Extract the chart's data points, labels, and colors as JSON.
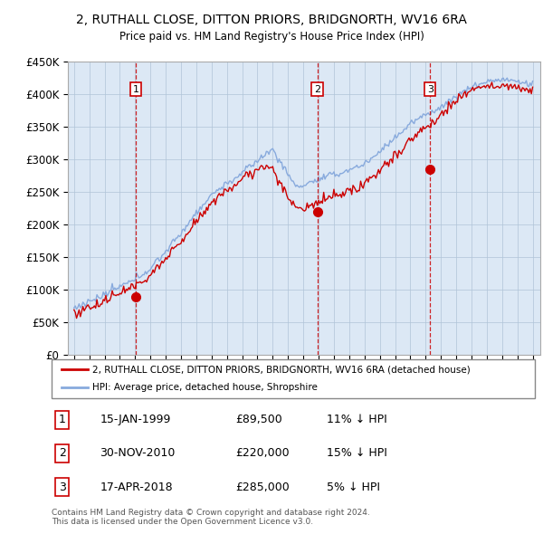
{
  "title": "2, RUTHALL CLOSE, DITTON PRIORS, BRIDGNORTH, WV16 6RA",
  "subtitle": "Price paid vs. HM Land Registry's House Price Index (HPI)",
  "ylim": [
    0,
    450000
  ],
  "yticks": [
    0,
    50000,
    100000,
    150000,
    200000,
    250000,
    300000,
    350000,
    400000,
    450000
  ],
  "ytick_labels": [
    "£0",
    "£50K",
    "£100K",
    "£150K",
    "£200K",
    "£250K",
    "£300K",
    "£350K",
    "£400K",
    "£450K"
  ],
  "price_paid_color": "#cc0000",
  "hpi_color": "#88aadd",
  "vline_color": "#cc0000",
  "marker_box_color": "#cc0000",
  "purchases": [
    {
      "number": 1,
      "date": "15-JAN-1999",
      "price": 89500,
      "year": 1999.04,
      "hpi_note": "11% ↓ HPI"
    },
    {
      "number": 2,
      "date": "30-NOV-2010",
      "price": 220000,
      "year": 2010.92,
      "hpi_note": "15% ↓ HPI"
    },
    {
      "number": 3,
      "date": "17-APR-2018",
      "price": 285000,
      "year": 2018.29,
      "hpi_note": "5% ↓ HPI"
    }
  ],
  "legend_line1": "2, RUTHALL CLOSE, DITTON PRIORS, BRIDGNORTH, WV16 6RA (detached house)",
  "legend_line2": "HPI: Average price, detached house, Shropshire",
  "footnote1": "Contains HM Land Registry data © Crown copyright and database right 2024.",
  "footnote2": "This data is licensed under the Open Government Licence v3.0.",
  "plot_bg_color": "#dce8f5",
  "grid_color": "#b0c4d8"
}
